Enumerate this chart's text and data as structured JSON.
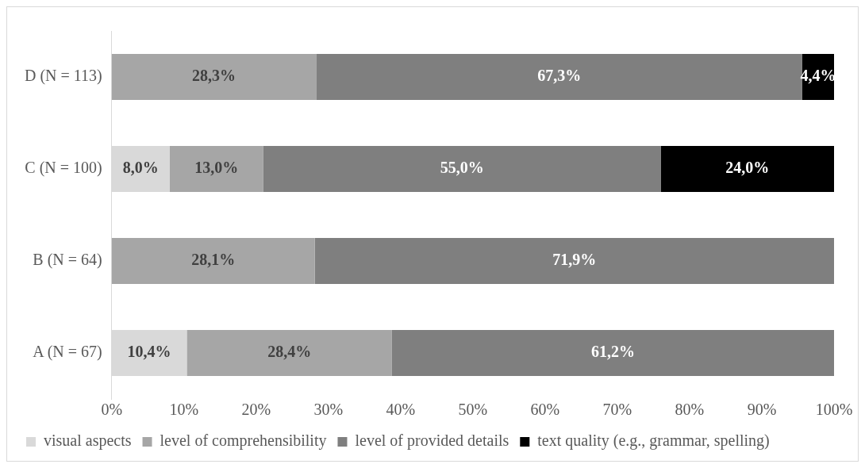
{
  "chart_data": {
    "type": "bar",
    "orientation": "horizontal",
    "stacked": true,
    "categories": [
      "D (N = 113)",
      "C (N = 100)",
      "B (N = 64)",
      "A (N = 67)"
    ],
    "series": [
      {
        "name": "visual aspects",
        "color": "#d9d9d9",
        "values": [
          null,
          8.0,
          null,
          10.4
        ],
        "value_labels": [
          null,
          "8,0%",
          null,
          "10,4%"
        ]
      },
      {
        "name": "level of comprehensibility",
        "color": "#a6a6a6",
        "values": [
          28.3,
          13.0,
          28.1,
          28.4
        ],
        "value_labels": [
          "28,3%",
          "13,0%",
          "28,1%",
          "28,4%"
        ]
      },
      {
        "name": "level of provided details",
        "color": "#7f7f7f",
        "values": [
          67.3,
          55.0,
          71.9,
          61.2
        ],
        "value_labels": [
          "67,3%",
          "55,0%",
          "71,9%",
          "61,2%"
        ]
      },
      {
        "name": "text quality (e.g., grammar, spelling)",
        "color": "#000000",
        "values": [
          4.4,
          24.0,
          null,
          null
        ],
        "value_labels": [
          "4,4%",
          "24,0%",
          null,
          null
        ]
      }
    ],
    "xlim": [
      0,
      100
    ],
    "xticks": [
      {
        "value": 0,
        "label": "0%"
      },
      {
        "value": 10,
        "label": "10%"
      },
      {
        "value": 20,
        "label": "20%"
      },
      {
        "value": 30,
        "label": "30%"
      },
      {
        "value": 40,
        "label": "40%"
      },
      {
        "value": 50,
        "label": "50%"
      },
      {
        "value": 60,
        "label": "60%"
      },
      {
        "value": 70,
        "label": "70%"
      },
      {
        "value": 80,
        "label": "80%"
      },
      {
        "value": 90,
        "label": "90%"
      },
      {
        "value": 100,
        "label": "100%"
      }
    ],
    "grid": false,
    "legend": "bottom"
  }
}
